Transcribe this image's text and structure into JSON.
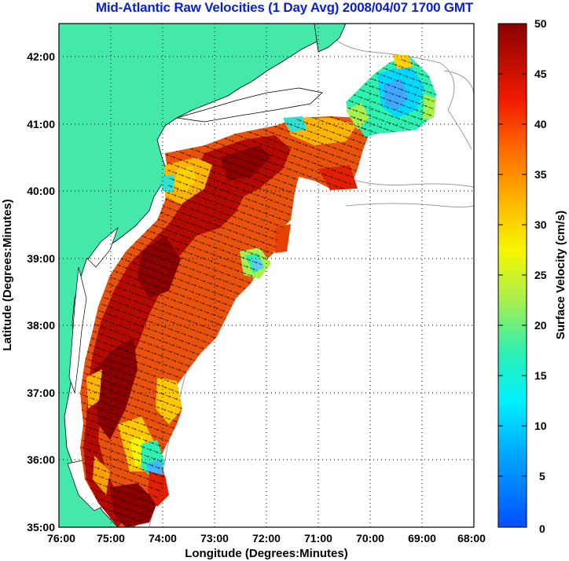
{
  "title": "Mid-Atlantic Raw Velocities (1 Day Avg) 2008/04/07 1700 GMT",
  "map": {
    "x_axis_label": "Longitude (Degrees:Minutes)",
    "y_axis_label": "Latitude (Degrees:Minutes)",
    "longitude_ticks": [
      "76:00",
      "75:00",
      "74:00",
      "73:00",
      "72:00",
      "71:00",
      "70:00",
      "69:00",
      "68:00"
    ],
    "latitude_ticks": [
      "42:00",
      "41:00",
      "40:00",
      "39:00",
      "38:00",
      "37:00",
      "36:00",
      "35:00"
    ],
    "lon_range": [
      -76,
      -68
    ],
    "lat_range": [
      35,
      42.5
    ],
    "grid": "dotted"
  },
  "colorbar": {
    "label": "Surface Velocity (cm/s)",
    "ticks": [
      "50",
      "45",
      "40",
      "35",
      "30",
      "25",
      "20",
      "15",
      "10",
      "5",
      "0"
    ],
    "range": [
      0,
      50
    ]
  },
  "colors": {
    "land": "#44e8a8",
    "title": "#0a1fd6",
    "contour": "#9a9a9a"
  }
}
